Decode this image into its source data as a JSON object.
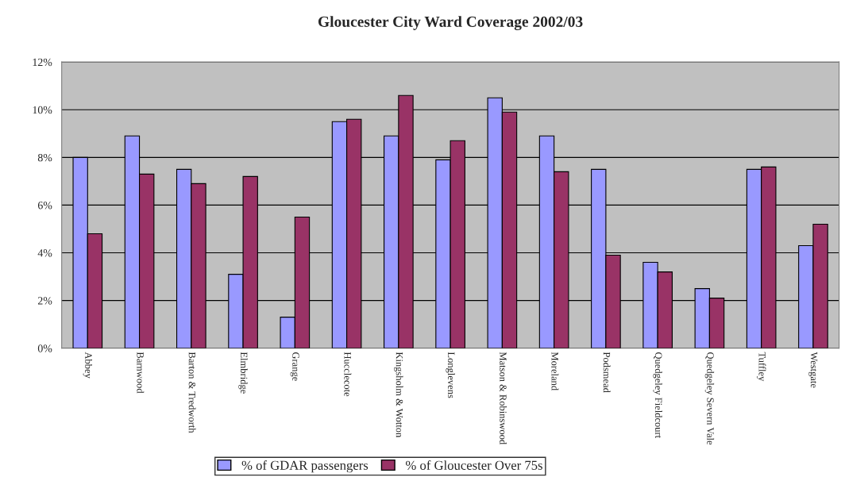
{
  "chart_data": {
    "type": "bar",
    "title": "Gloucester City Ward Coverage 2002/03",
    "categories": [
      "Abbey",
      "Barnwood",
      "Barton & Tredworth",
      "Elmbridge",
      "Grange",
      "Hucclecote",
      "Kingsholm & Wotton",
      "Longlevens",
      "Matson & Robinswood",
      "Moreland",
      "Podsmead",
      "Quedgeley Fieldcourt",
      "Quedgeley Severn Vale",
      "Tuffley",
      "Westgate"
    ],
    "series": [
      {
        "name": "% of GDAR passengers",
        "color": "#9999ff",
        "values": [
          8.0,
          8.9,
          7.5,
          3.1,
          1.3,
          9.5,
          8.9,
          7.9,
          10.5,
          8.9,
          7.5,
          3.6,
          2.5,
          7.5,
          4.3
        ]
      },
      {
        "name": "% of Gloucester Over 75s",
        "color": "#993366",
        "values": [
          4.8,
          7.3,
          6.9,
          7.2,
          5.5,
          9.6,
          10.6,
          8.7,
          9.9,
          7.4,
          3.9,
          3.2,
          2.1,
          7.6,
          5.2
        ]
      }
    ],
    "ylim": [
      0,
      12
    ],
    "yticks": [
      {
        "value": 0,
        "label": "0%"
      },
      {
        "value": 2,
        "label": "2%"
      },
      {
        "value": 4,
        "label": "4%"
      },
      {
        "value": 6,
        "label": "6%"
      },
      {
        "value": 8,
        "label": "8%"
      },
      {
        "value": 10,
        "label": "10%"
      },
      {
        "value": 12,
        "label": "12%"
      }
    ],
    "grid": "y",
    "legend": "bottom"
  }
}
